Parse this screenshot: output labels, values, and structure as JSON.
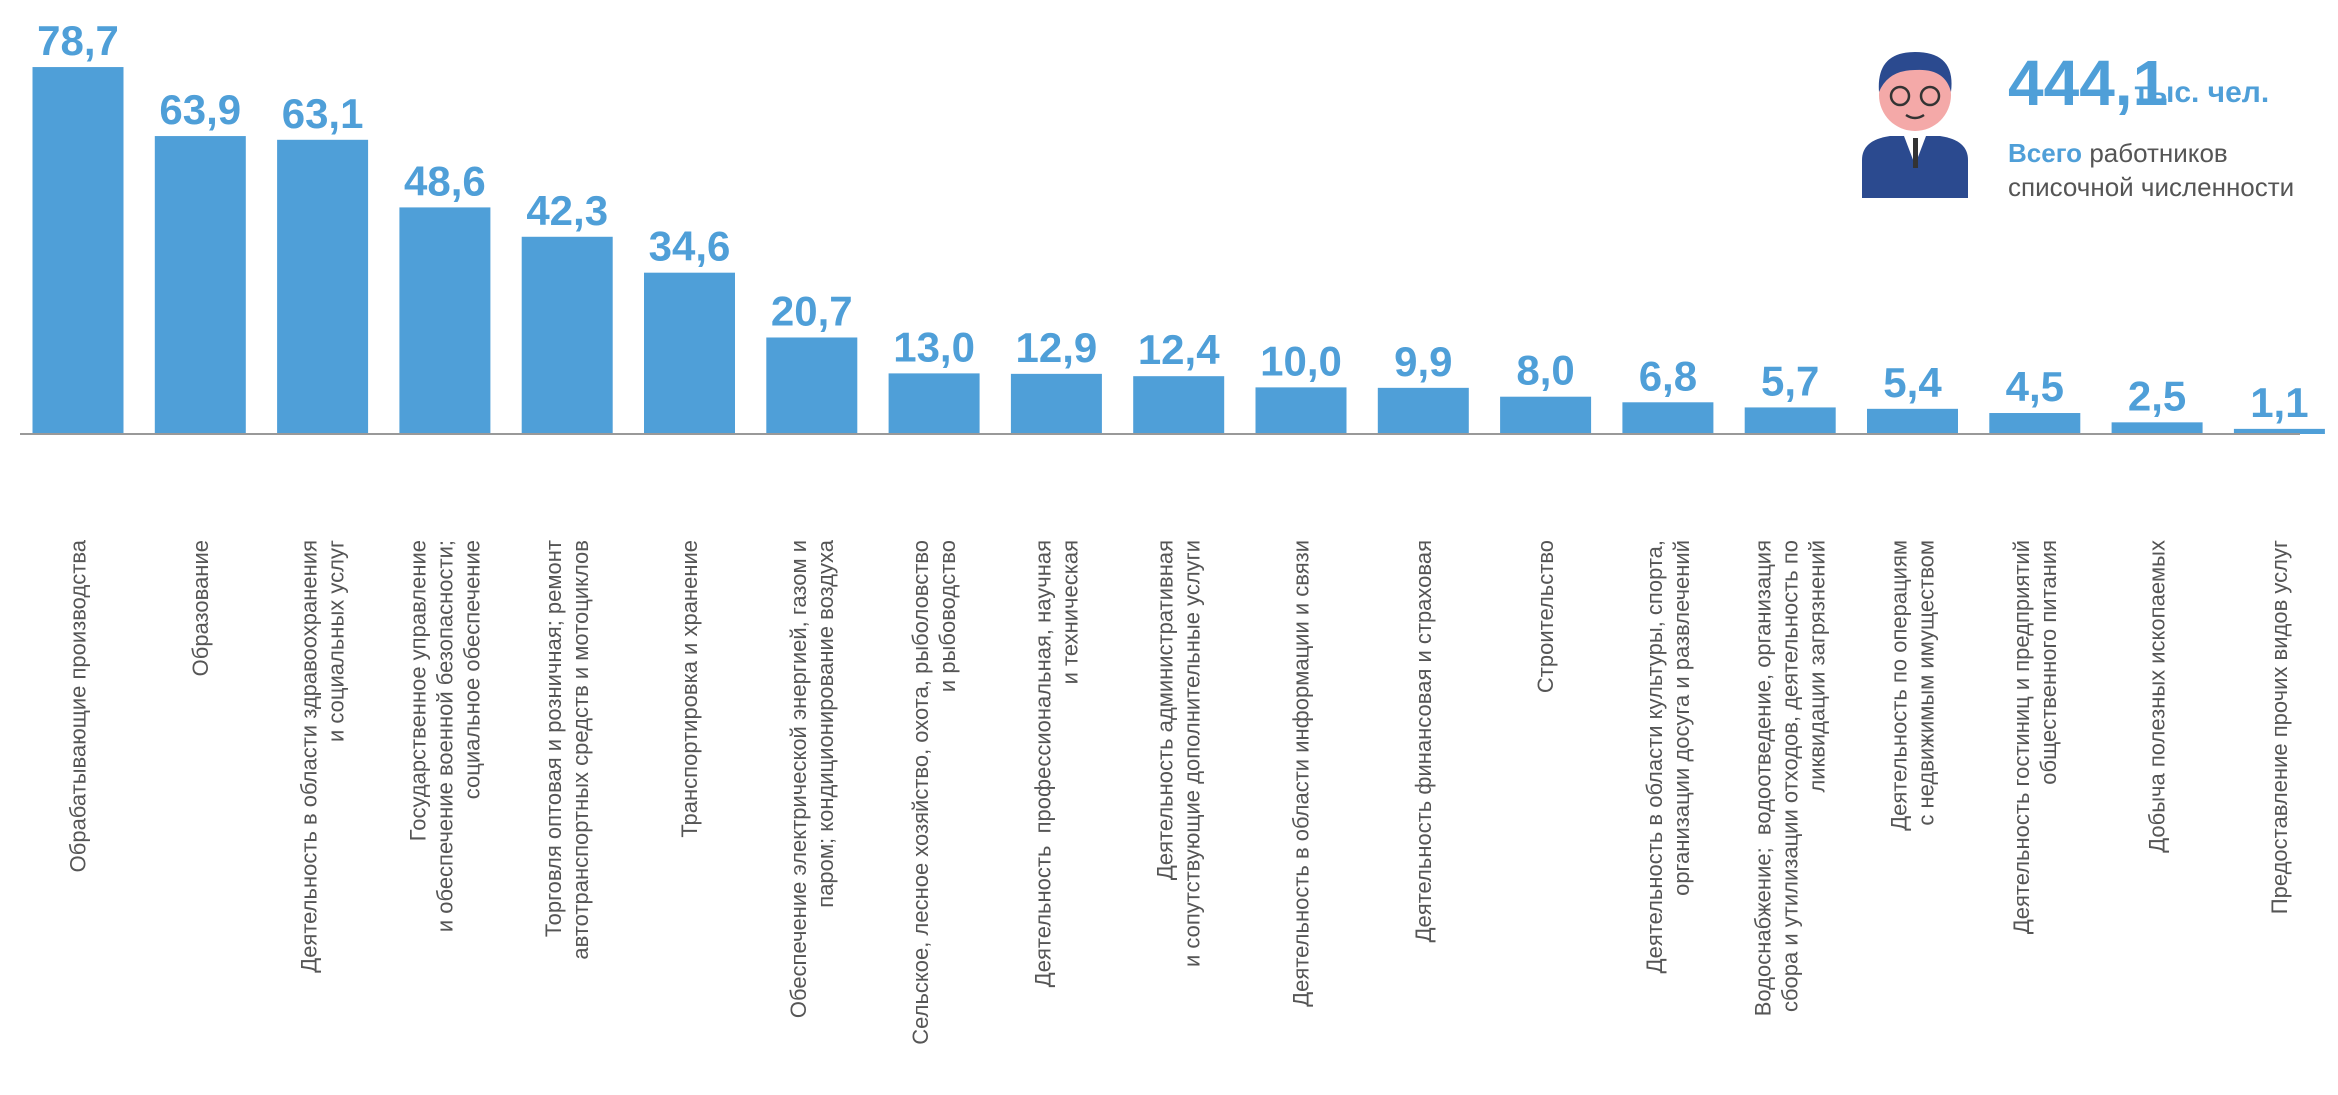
{
  "chart_data": {
    "type": "bar",
    "categories": [
      "Обрабатывающие производства",
      "Образование",
      "Деятельность в области здравоохранения\nи социальных услуг",
      "Государственное управление\nи обеспечение военной безопасности;\nсоциальное обеспечение",
      "Торговля оптовая и розничная; ремонт\nавтотранспортных средств и мотоциклов",
      "Транспортировка и хранение",
      "Обеспечение электрической энергией, газом и\nпаром; кондиционирование воздуха",
      "Сельское, лесное хозяйство, охота, рыболовство\nи рыбоводство",
      "Деятельность  профессиональная, научная\nи техническая",
      "Деятельность административная\nи сопутствующие дополнительные услуги",
      "Деятельность в области информации и связи",
      "Деятельность финансовая и страховая",
      "Строительство",
      "Деятельность в области культуры, спорта,\nорганизации досуга и развлечений",
      "Водоснабжение;  водоотведение, организация\nсбора и утилизации отходов, деятельность по\nликвидации загрязнений",
      "Деятельность по операциям\nс недвижимым имуществом",
      "Деятельность гостиниц и предприятий\nобщественного питания",
      "Добыча полезных ископаемых",
      "Предоставление прочих видов услуг"
    ],
    "values": [
      78.7,
      63.9,
      63.1,
      48.6,
      42.3,
      34.6,
      20.7,
      13.0,
      12.9,
      12.4,
      10.0,
      9.9,
      8.0,
      6.8,
      5.7,
      5.4,
      4.5,
      2.5,
      1.1
    ],
    "value_labels": [
      "78,7",
      "63,9",
      "63,1",
      "48,6",
      "42,3",
      "34,6",
      "20,7",
      "13,0",
      "12,9",
      "12,4",
      "10,0",
      "9,9",
      "8,0",
      "6,8",
      "5,7",
      "5,4",
      "4,5",
      "2,5",
      "1,1"
    ],
    "color": "#4f9fd8",
    "ylim": [
      0,
      80
    ],
    "annotation": {
      "value": "444,1",
      "unit": "тыс. чел.",
      "caption_bold": "Всего",
      "caption": "работников\nсписочной численности"
    }
  }
}
